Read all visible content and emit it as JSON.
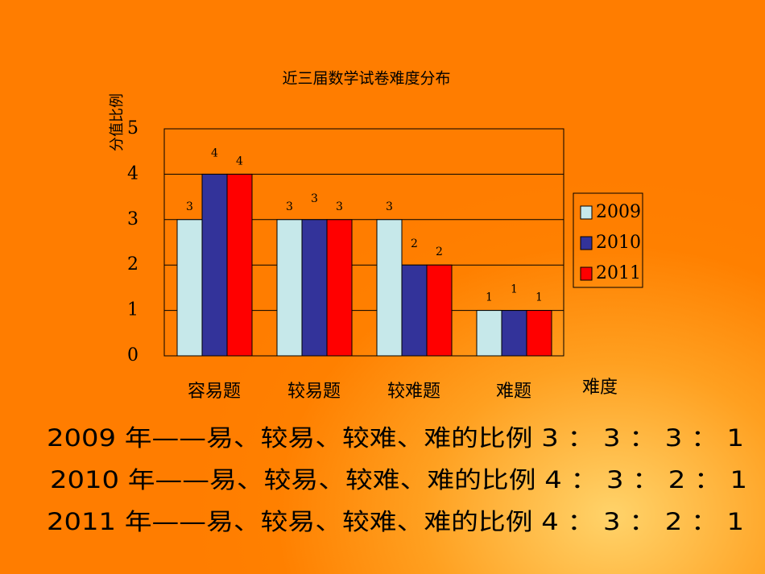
{
  "chart_data": {
    "type": "bar",
    "title": "近三届数学试卷难度分布",
    "y_label": "分值比例",
    "x_label": "难度",
    "categories": [
      "容易题",
      "较易题",
      "较难题",
      "难题"
    ],
    "series": [
      {
        "name": "2009",
        "color": "#c6e8ea",
        "values": [
          3,
          3,
          3,
          1
        ]
      },
      {
        "name": "2010",
        "color": "#33339a",
        "values": [
          4,
          3,
          2,
          1
        ]
      },
      {
        "name": "2011",
        "color": "#ff0000",
        "values": [
          4,
          3,
          2,
          1
        ]
      }
    ],
    "ylim": [
      0,
      5
    ],
    "yticks": [
      0,
      1,
      2,
      3,
      4,
      5
    ],
    "grid": true,
    "legend": "right"
  },
  "summary_lines": [
    {
      "text": "2009 年——易、较易、较难、难的比例 3 ： 3 ： 3 ： 1",
      "color": "#2e3192"
    },
    {
      "text": "2010 年——易、较易、较难、难的比例 4 ： 3 ： 2 ： 1",
      "color": "#2e3192"
    },
    {
      "text": "2011 年——易、较易、较难、难的比例 4 ： 3 ： 2 ： 1",
      "color": "#ff0000"
    }
  ]
}
